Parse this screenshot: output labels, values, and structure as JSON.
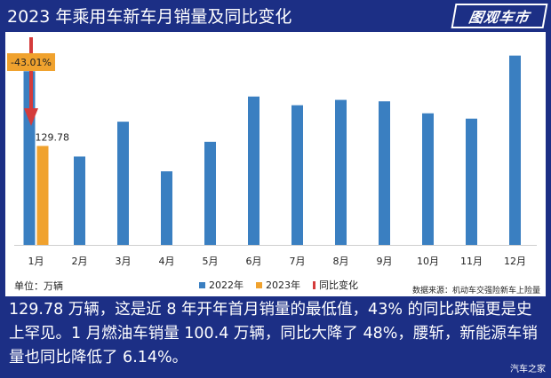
{
  "header": {
    "title": "2023 年乘用车新车月销量及同比变化",
    "logo_text": "图观车市"
  },
  "colors": {
    "background": "#1c2f85",
    "series_2022": "#3a7fc1",
    "series_2023": "#f0a22e",
    "yoy_arrow": "#d43b3b",
    "yoy_label_bg": "#f0a22e"
  },
  "chart_data": {
    "type": "bar",
    "categories": [
      "1月",
      "2月",
      "3月",
      "4月",
      "5月",
      "6月",
      "7月",
      "8月",
      "9月",
      "10月",
      "11月",
      "12月"
    ],
    "series": [
      {
        "name": "2022年",
        "values": [
          227.8,
          115.9,
          161.6,
          96.5,
          135.2,
          194.6,
          183.2,
          190.2,
          188.3,
          172.6,
          165.6,
          248.3
        ]
      },
      {
        "name": "2023年",
        "values": [
          129.78,
          null,
          null,
          null,
          null,
          null,
          null,
          null,
          null,
          null,
          null,
          null
        ]
      }
    ],
    "yoy": {
      "name": "同比变化",
      "category": "1月",
      "label": "-43.01%"
    },
    "data_labels": [
      {
        "category": "1月",
        "series": "2023年",
        "text": "129.78"
      }
    ],
    "ylim": [
      0,
      270
    ],
    "grid": false,
    "legend_placement": "bottom",
    "unit_label": "单位：万辆",
    "source": "数据来源：机动车交强险新车上险量"
  },
  "caption": "129.78 万辆，这是近 8 年开年首月销量的最低值，43% 的同比跌幅更是史上罕见。1 月燃油车销量 100.4 万辆，同比大降了 48%，腰斩，新能源车销量也同比降低了 6.14%。",
  "watermark": "汽车之家"
}
